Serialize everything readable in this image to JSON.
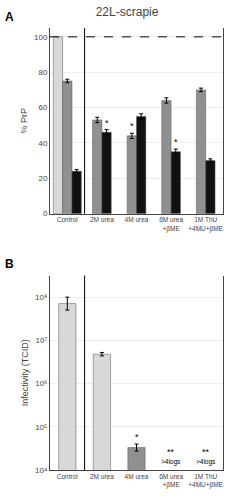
{
  "chart_data": [
    {
      "type": "bar",
      "title": "22L-scrapie",
      "ylabel": "% PrP",
      "categories": [
        "Control",
        "2M urea",
        "4M urea",
        "6M urea\n+βME",
        "1M ThU\n+4MU+βME"
      ],
      "series": [
        {
          "color": "#d8d8d8",
          "values": [
            100,
            null,
            null,
            null,
            null
          ]
        },
        {
          "color": "#909090",
          "values": [
            75,
            53,
            44,
            64,
            70
          ],
          "errors": [
            1,
            1.5,
            1.5,
            1.5,
            1
          ],
          "annotations": [
            null,
            null,
            "*",
            null,
            null
          ]
        },
        {
          "color": "#111111",
          "values": [
            24,
            46,
            55,
            35,
            30
          ],
          "errors": [
            1,
            1.5,
            1.5,
            1.5,
            1
          ],
          "annotations": [
            null,
            "*",
            null,
            "*",
            null
          ]
        }
      ],
      "reference_lines": [
        {
          "y": 100,
          "line_style": "dashed"
        }
      ],
      "annotations": [
        {
          "text": "A"
        }
      ],
      "ylim": [
        0,
        105
      ],
      "yticks": [
        0,
        20,
        40,
        60,
        80,
        100
      ],
      "grid": true
    },
    {
      "type": "bar",
      "ylabel": "Infectivity (TCID)",
      "log": "y",
      "categories": [
        "Control",
        "2M urea",
        "4M urea",
        "6M urea\n+βME",
        "1M ThU\n+4MU+βME"
      ],
      "series": [
        {
          "values": [
            70794578.44,
            4786300.92,
            33113.11,
            null,
            null
          ],
          "colors": [
            "#d8d8d8",
            "#d8d8d8",
            "#909090",
            "#d8d8d8",
            "#d8d8d8"
          ],
          "errors_minus": [
            20675855.08,
            421142.6,
            5570.83,
            null,
            null
          ],
          "errors_plus": [
            29205421.56,
            461773.68,
            6697.6,
            null,
            null
          ],
          "annotations": [
            null,
            null,
            "*",
            "**",
            "**"
          ]
        }
      ],
      "annotations": [
        {
          "category": "6M urea\n+βME",
          "text": ">4logs"
        },
        {
          "category": "1M ThU\n+4MU+βME",
          "text": ">4logs"
        },
        {
          "text": "B"
        }
      ],
      "ylim": [
        10000,
        316227766.0168379
      ],
      "yticks": [
        {
          "value": 10000,
          "label": "10⁴"
        },
        {
          "value": 100000,
          "label": "10⁵"
        },
        {
          "value": 1000000,
          "label": "10⁶"
        },
        {
          "value": 10000000,
          "label": "10⁷"
        },
        {
          "value": 100000000,
          "label": "10⁸"
        }
      ],
      "grid": true
    }
  ]
}
